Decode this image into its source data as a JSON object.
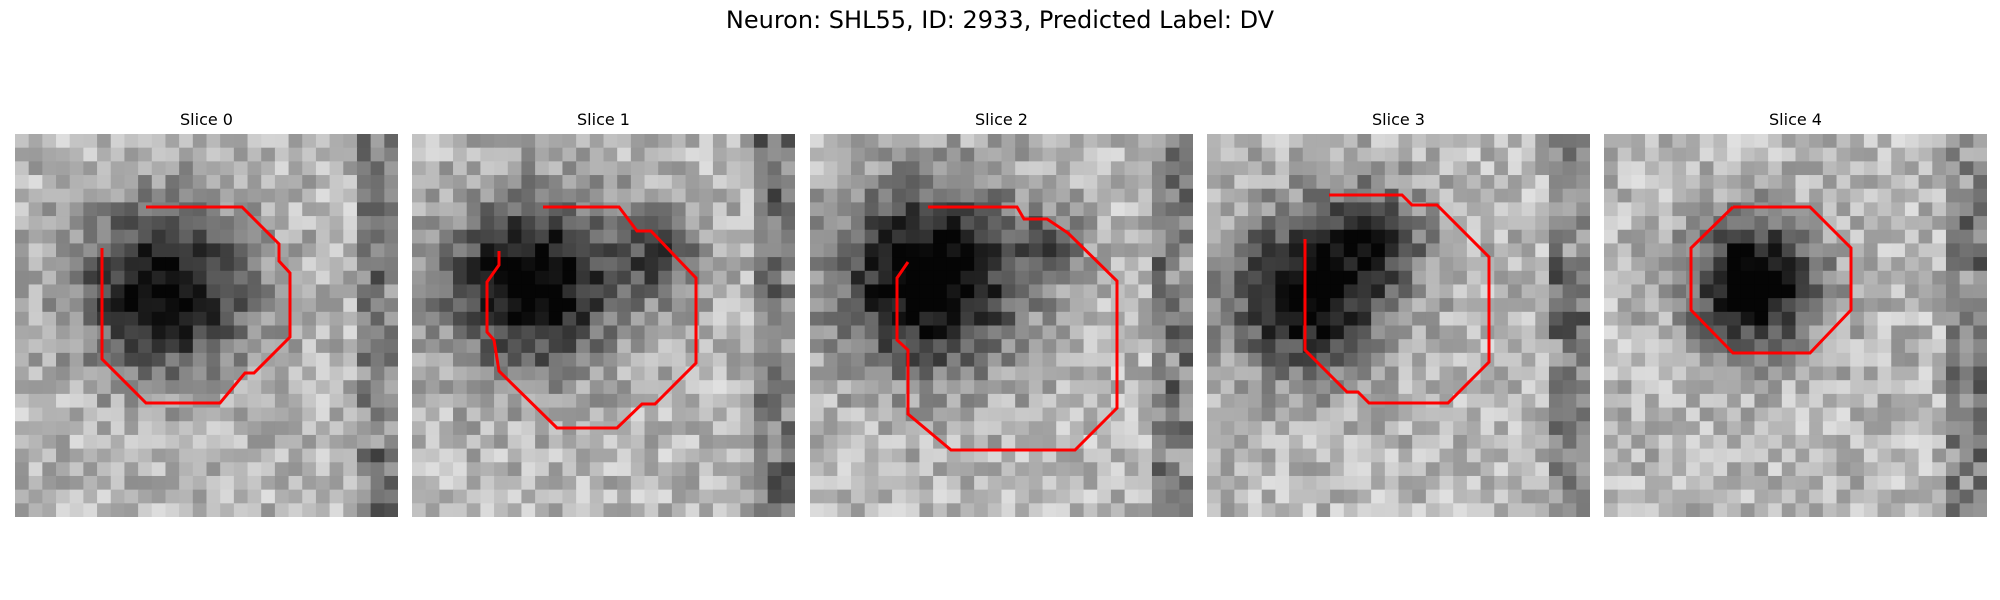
{
  "figure": {
    "title": "Neuron: SHL55, ID: 2933, Predicted Label: DV"
  },
  "colors": {
    "contour": "#ff0000",
    "background": "#ffffff"
  },
  "panels": [
    {
      "title": "Slice 0"
    },
    {
      "title": "Slice 1"
    },
    {
      "title": "Slice 2"
    },
    {
      "title": "Slice 3"
    },
    {
      "title": "Slice 4"
    }
  ]
}
